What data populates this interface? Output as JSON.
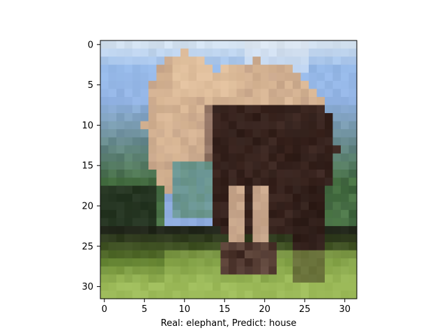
{
  "figure": {
    "xlabel": "Real: elephant, Predict: house",
    "x_ticks": [
      "0",
      "5",
      "10",
      "15",
      "20",
      "25",
      "30"
    ],
    "y_ticks": [
      "0",
      "5",
      "10",
      "15",
      "20",
      "25",
      "30"
    ],
    "image_size": [
      32,
      32
    ],
    "image_subject": "elephant in grass (low-resolution pixelated photo)",
    "palette": {
      "sky": "#a9c6ea",
      "sky_light": "#cfe0f3",
      "elephant_light": "#d9b694",
      "elephant_mid": "#b08f7c",
      "elephant_dark": "#3b2520",
      "tree_green": "#4f7a4a",
      "water_teal": "#6f9a9c",
      "grass": "#9dbb5a",
      "grass_dark": "#5f7e2e",
      "shadow": "#1f2418"
    }
  }
}
